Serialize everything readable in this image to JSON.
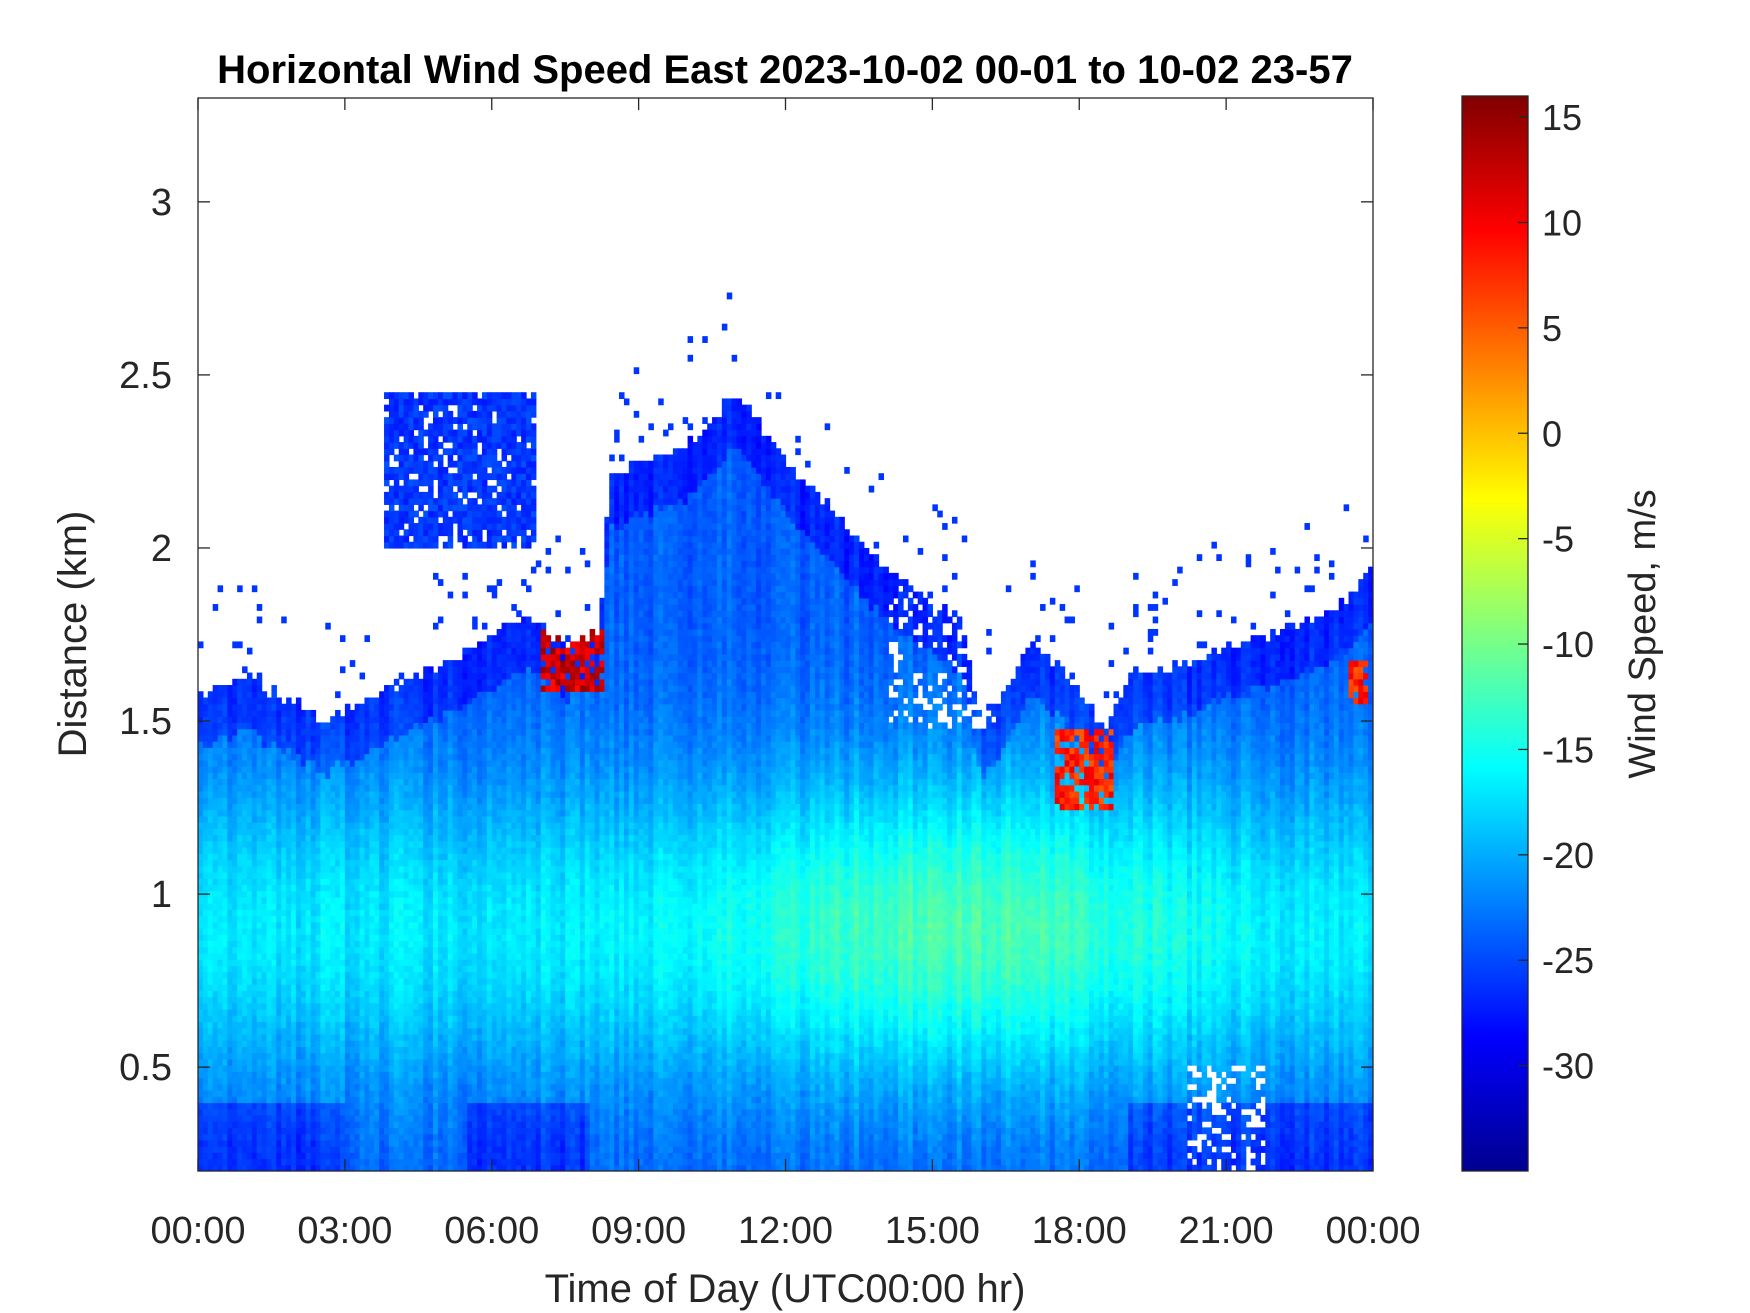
{
  "chart_data": {
    "type": "heatmap",
    "title": "Horizontal Wind Speed East 2023-10-02 00-01 to 10-02 23-57",
    "xlabel": "Time of Day (UTC00:00 hr)",
    "ylabel": "Distance (km)",
    "colorbar_label": "Wind Speed, m/s",
    "x_units": "hour",
    "xlim": [
      0,
      24
    ],
    "ylim": [
      0.2,
      3.3
    ],
    "clim": [
      -35,
      16
    ],
    "colormap": "jet",
    "x_ticks": [
      {
        "value": 0,
        "label": "00:00"
      },
      {
        "value": 3,
        "label": "03:00"
      },
      {
        "value": 6,
        "label": "06:00"
      },
      {
        "value": 9,
        "label": "09:00"
      },
      {
        "value": 12,
        "label": "12:00"
      },
      {
        "value": 15,
        "label": "15:00"
      },
      {
        "value": 18,
        "label": "18:00"
      },
      {
        "value": 21,
        "label": "21:00"
      },
      {
        "value": 24,
        "label": "00:00"
      }
    ],
    "y_ticks": [
      {
        "value": 0.5,
        "label": "0.5"
      },
      {
        "value": 1,
        "label": "1"
      },
      {
        "value": 1.5,
        "label": "1.5"
      },
      {
        "value": 2,
        "label": "2"
      },
      {
        "value": 2.5,
        "label": "2.5"
      },
      {
        "value": 3,
        "label": "3"
      }
    ],
    "colorbar_ticks": [
      {
        "value": 15,
        "label": "15"
      },
      {
        "value": 10,
        "label": "10"
      },
      {
        "value": 5,
        "label": "5"
      },
      {
        "value": 0,
        "label": "0"
      },
      {
        "value": -5,
        "label": "-5"
      },
      {
        "value": -10,
        "label": "-10"
      },
      {
        "value": -15,
        "label": "-15"
      },
      {
        "value": -20,
        "label": "-20"
      },
      {
        "value": -25,
        "label": "-25"
      },
      {
        "value": -30,
        "label": "-30"
      }
    ],
    "data_top_profile": {
      "hours": [
        0,
        1,
        2,
        2.6,
        3.5,
        4.5,
        5.5,
        6.3,
        6.8,
        7.5,
        8.2,
        8.4,
        9,
        10,
        11,
        12,
        13,
        14,
        15,
        15.6,
        16,
        16.5,
        17,
        17.6,
        18.1,
        18.6,
        19,
        20,
        21,
        22,
        23,
        23.7,
        24
      ],
      "top_km": [
        1.58,
        1.62,
        1.55,
        1.5,
        1.56,
        1.63,
        1.7,
        1.77,
        1.79,
        1.72,
        1.76,
        2.2,
        2.25,
        2.3,
        2.45,
        2.25,
        2.1,
        1.95,
        1.85,
        1.78,
        1.48,
        1.58,
        1.72,
        1.66,
        1.55,
        1.48,
        1.62,
        1.66,
        1.72,
        1.75,
        1.82,
        1.88,
        1.95
      ]
    },
    "detached_layer": {
      "hours": [
        3.8,
        6.9
      ],
      "bottom_km": 2.0,
      "top_km": 2.45,
      "value": -26
    },
    "features": [
      {
        "hours": [
          7.0,
          8.3
        ],
        "heights_km": [
          1.58,
          1.76
        ],
        "value": 12
      },
      {
        "hours": [
          17.5,
          18.7
        ],
        "heights_km": [
          1.25,
          1.48
        ],
        "value": 8
      },
      {
        "hours": [
          23.5,
          23.9
        ],
        "heights_km": [
          1.55,
          1.68
        ],
        "value": 8
      }
    ],
    "gaps": [
      {
        "hours": [
          20.2,
          21.8
        ],
        "heights_km": [
          0.2,
          0.5
        ]
      },
      {
        "hours": [
          14.1,
          16.3
        ],
        "heights_km": [
          1.48,
          1.9
        ]
      }
    ]
  }
}
